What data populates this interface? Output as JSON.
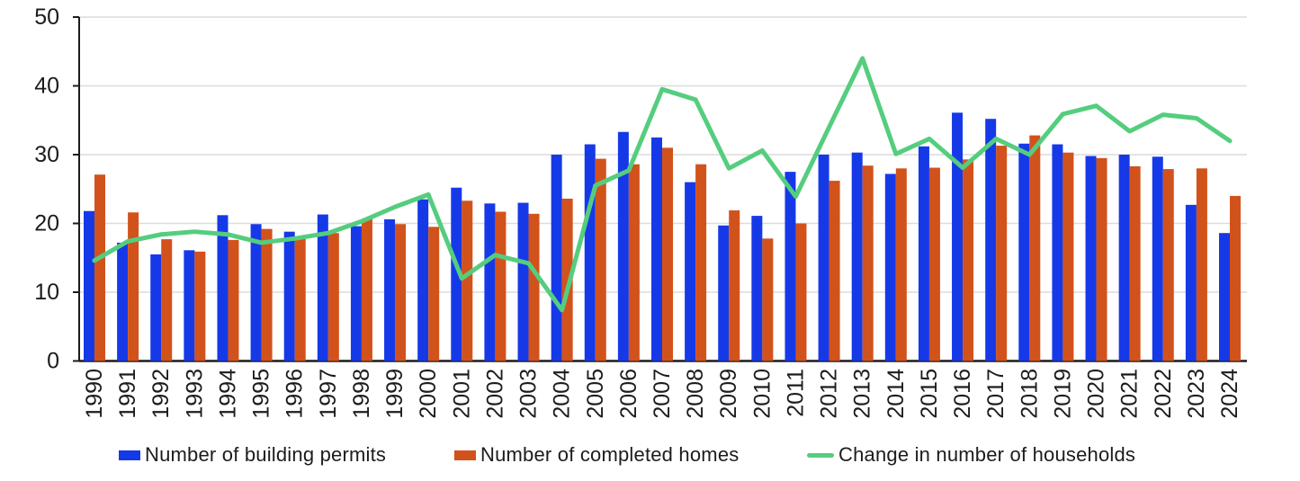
{
  "chart_data": {
    "type": "bar",
    "title": "",
    "xlabel": "",
    "ylabel": "",
    "categories": [
      "1990",
      "1991",
      "1992",
      "1993",
      "1994",
      "1995",
      "1996",
      "1997",
      "1998",
      "1999",
      "2000",
      "2001",
      "2002",
      "2003",
      "2004",
      "2005",
      "2006",
      "2007",
      "2008",
      "2009",
      "2010",
      "2011",
      "2012",
      "2013",
      "2014",
      "2015",
      "2016",
      "2017",
      "2018",
      "2019",
      "2020",
      "2021",
      "2022",
      "2023",
      "2024"
    ],
    "series": [
      {
        "name": "Number of building permits",
        "type": "bar",
        "color": "#1639e8",
        "values": [
          21.8,
          17.2,
          15.5,
          16.1,
          21.2,
          19.9,
          18.8,
          21.3,
          19.6,
          20.6,
          23.5,
          25.2,
          22.9,
          23.0,
          30.0,
          31.5,
          33.3,
          32.5,
          26.0,
          19.7,
          21.1,
          27.5,
          30.0,
          30.3,
          27.2,
          31.2,
          36.1,
          35.2,
          31.6,
          31.5,
          29.8,
          30.0,
          29.7,
          22.7,
          18.6
        ]
      },
      {
        "name": "Number of completed homes",
        "type": "bar",
        "color": "#d2521c",
        "values": [
          27.1,
          21.6,
          17.7,
          15.9,
          17.6,
          19.2,
          17.8,
          18.6,
          20.7,
          19.9,
          19.5,
          23.3,
          21.7,
          21.4,
          23.6,
          29.4,
          28.6,
          31.0,
          28.6,
          21.9,
          17.8,
          20.0,
          26.2,
          28.4,
          28.0,
          28.1,
          29.3,
          31.3,
          32.8,
          30.3,
          29.5,
          28.3,
          27.9,
          28.0,
          24.0
        ]
      },
      {
        "name": "Change in number of households",
        "type": "line",
        "color": "#55cd7e",
        "values": [
          14.6,
          17.4,
          18.4,
          18.8,
          18.4,
          17.2,
          17.8,
          18.6,
          20.3,
          22.4,
          24.2,
          12.0,
          15.4,
          14.2,
          7.4,
          25.5,
          27.7,
          39.5,
          38.0,
          28.0,
          30.6,
          23.9,
          34.0,
          44.0,
          30.1,
          32.3,
          28.1,
          32.3,
          30.0,
          35.9,
          37.1,
          33.4,
          35.8,
          35.3,
          32.0
        ]
      }
    ],
    "ylim": [
      0,
      50
    ],
    "yticks": [
      0,
      10,
      20,
      30,
      40,
      50
    ],
    "grid": true,
    "legend_position": "bottom",
    "axis_color": "#1c1c1c",
    "grid_color": "#dcdcdc",
    "background": "#ffffff"
  }
}
